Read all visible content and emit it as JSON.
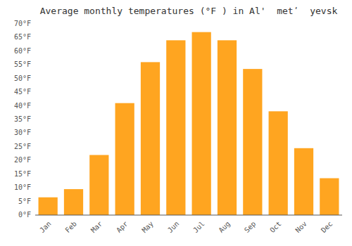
{
  "chart_data": {
    "type": "bar",
    "title": "Average monthly temperatures (°F ) in Al'  metʹ  yevsk",
    "categories": [
      "Jan",
      "Feb",
      "Mar",
      "Apr",
      "May",
      "Jun",
      "Jul",
      "Aug",
      "Sep",
      "Oct",
      "Nov",
      "Dec"
    ],
    "values": [
      6.5,
      9.5,
      22,
      41,
      56,
      64,
      67,
      64,
      53.5,
      38,
      24.5,
      13.5
    ],
    "color": "#FFA520",
    "ylim": [
      0,
      70
    ],
    "yticks": [
      {
        "value": 0,
        "label": "0°F"
      },
      {
        "value": 5,
        "label": "5°F"
      },
      {
        "value": 10,
        "label": "10°F"
      },
      {
        "value": 15,
        "label": "15°F"
      },
      {
        "value": 20,
        "label": "20°F"
      },
      {
        "value": 25,
        "label": "25°F"
      },
      {
        "value": 30,
        "label": "30°F"
      },
      {
        "value": 35,
        "label": "35°F"
      },
      {
        "value": 40,
        "label": "40°F"
      },
      {
        "value": 45,
        "label": "45°F"
      },
      {
        "value": 50,
        "label": "50°F"
      },
      {
        "value": 55,
        "label": "55°F"
      },
      {
        "value": 60,
        "label": "60°F"
      },
      {
        "value": 65,
        "label": "65°F"
      },
      {
        "value": 70,
        "label": "70°F"
      }
    ],
    "grid": false
  }
}
